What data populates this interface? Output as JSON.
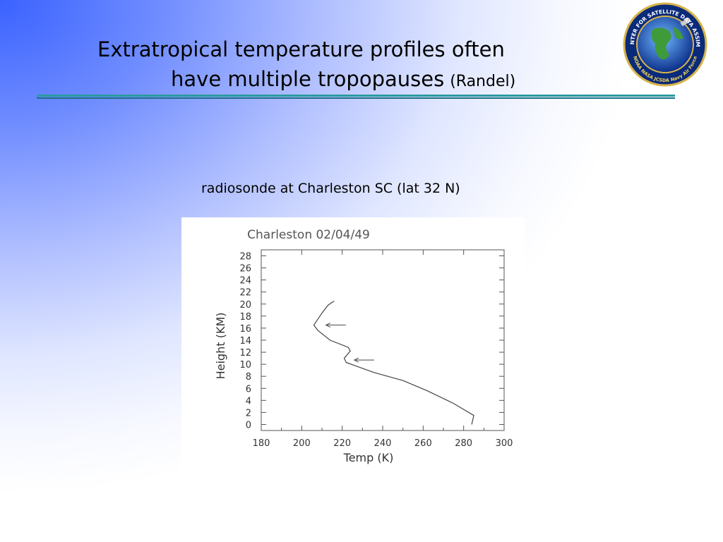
{
  "slide": {
    "title_line1": "Extratropical temperature profiles often",
    "title_line2": "have multiple tropopauses",
    "title_aside": "(Randel)",
    "subtitle": "radiosonde at Charleston SC (lat 32 N)"
  },
  "logo": {
    "icon": "jcsda-globe-seal",
    "arc_text": "JOINT CENTER FOR SATELLITE DATA ASSIMILATION",
    "bottom_text": "NOAA  NASA  JCSDA  Navy  Air Force"
  },
  "colors": {
    "title_rule": "#2a9aa0",
    "plot_line": "#444444"
  },
  "chart_data": {
    "type": "line",
    "title": "Charleston 02/04/49",
    "xlabel": "Temp (K)",
    "ylabel": "Height (KM)",
    "xlim": [
      180,
      300
    ],
    "ylim": [
      -1,
      29
    ],
    "xticks": [
      180,
      200,
      220,
      240,
      260,
      280,
      300
    ],
    "yticks": [
      0,
      2,
      4,
      6,
      8,
      10,
      12,
      14,
      16,
      18,
      20,
      22,
      24,
      26,
      28
    ],
    "grid": false,
    "series": [
      {
        "x": [
          284,
          285,
          275,
          262,
          250,
          236,
          222,
          221,
          224,
          223,
          214,
          208,
          206,
          210,
          213,
          216
        ],
        "y": [
          0,
          1.5,
          3.5,
          5.6,
          7.3,
          8.6,
          10.3,
          11.0,
          12.2,
          12.8,
          14.0,
          15.6,
          16.5,
          18.5,
          19.8,
          20.5
        ]
      }
    ],
    "annotations": [
      {
        "type": "arrow",
        "x": 212,
        "y": 16.5
      },
      {
        "type": "arrow",
        "x": 226,
        "y": 10.7
      }
    ]
  }
}
